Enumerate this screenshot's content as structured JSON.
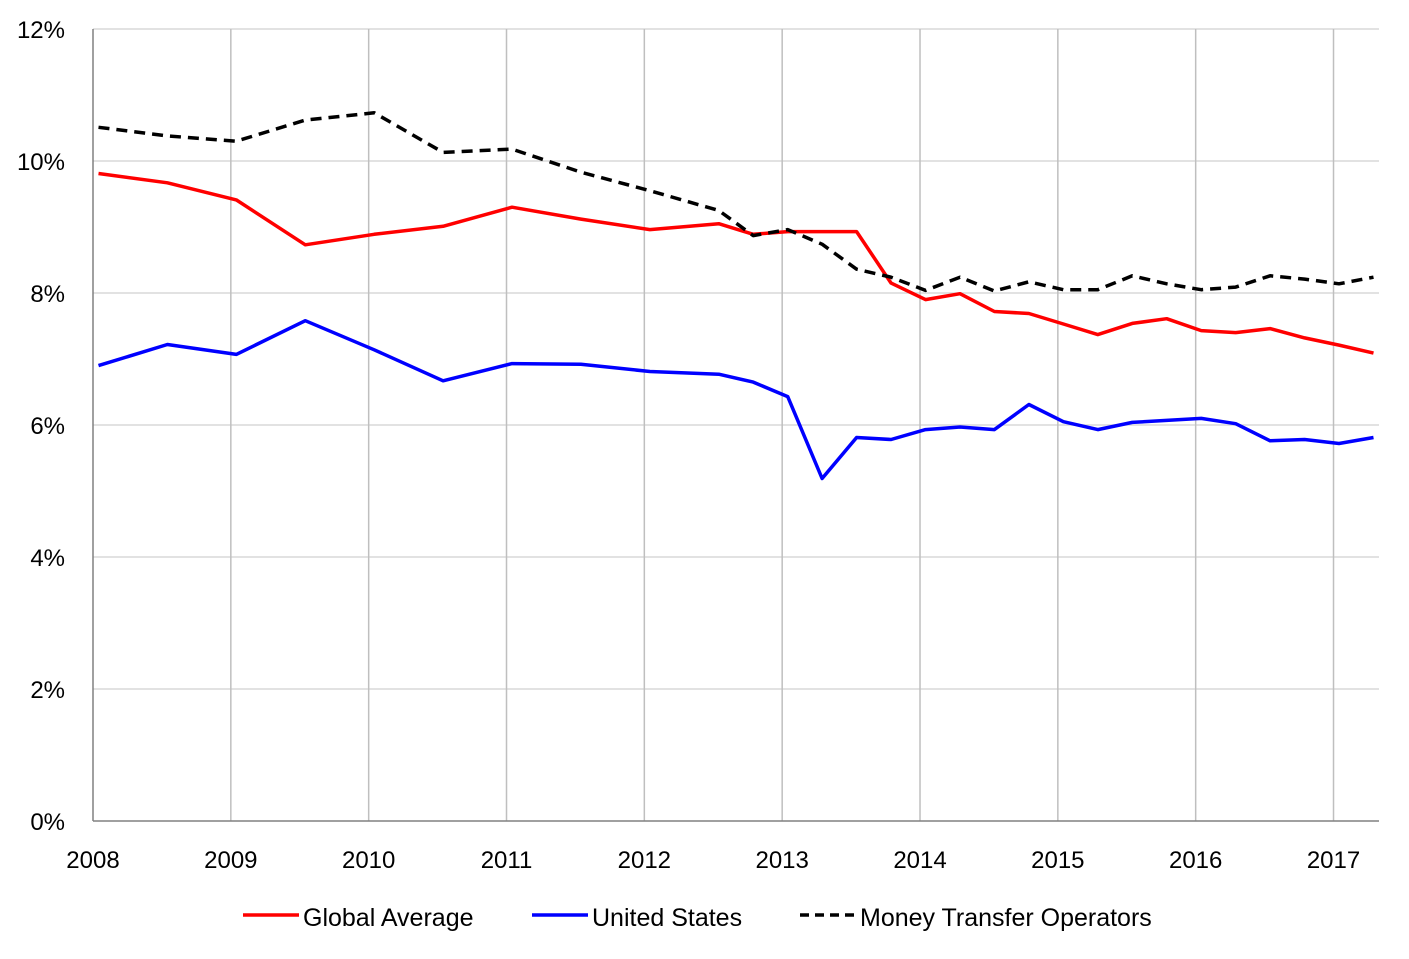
{
  "chart_data": {
    "type": "line",
    "title": "",
    "xlabel": "",
    "ylabel": "",
    "ylim": [
      0,
      12
    ],
    "xlim": [
      2008,
      2017.33
    ],
    "y_ticks": [
      {
        "value": 0,
        "label": "0%"
      },
      {
        "value": 2,
        "label": "2%"
      },
      {
        "value": 4,
        "label": "4%"
      },
      {
        "value": 6,
        "label": "6%"
      },
      {
        "value": 8,
        "label": "8%"
      },
      {
        "value": 10,
        "label": "10%"
      },
      {
        "value": 12,
        "label": "12%"
      }
    ],
    "x_ticks": [
      {
        "value": 2008,
        "label": "2008"
      },
      {
        "value": 2009,
        "label": "2009"
      },
      {
        "value": 2010,
        "label": "2010"
      },
      {
        "value": 2011,
        "label": "2011"
      },
      {
        "value": 2012,
        "label": "2012"
      },
      {
        "value": 2013,
        "label": "2013"
      },
      {
        "value": 2014,
        "label": "2014"
      },
      {
        "value": 2015,
        "label": "2015"
      },
      {
        "value": 2016,
        "label": "2016"
      },
      {
        "value": 2017,
        "label": "2017"
      }
    ],
    "grid": true,
    "legend_position": "bottom",
    "series": [
      {
        "name": "Global Average",
        "color": "#ff0000",
        "dash": "solid",
        "x": [
          2008.04,
          2008.54,
          2009.04,
          2009.54,
          2010.04,
          2010.54,
          2011.04,
          2011.54,
          2012.04,
          2012.54,
          2012.79,
          2013.04,
          2013.29,
          2013.54,
          2013.79,
          2014.04,
          2014.29,
          2014.54,
          2014.79,
          2015.04,
          2015.29,
          2015.54,
          2015.79,
          2016.04,
          2016.29,
          2016.54,
          2016.79,
          2017.04,
          2017.29
        ],
        "values": [
          9.81,
          9.67,
          9.41,
          8.73,
          8.89,
          9.01,
          9.3,
          9.12,
          8.96,
          9.05,
          8.89,
          8.93,
          8.93,
          8.93,
          8.15,
          7.9,
          7.99,
          7.72,
          7.69,
          7.53,
          7.37,
          7.54,
          7.61,
          7.43,
          7.4,
          7.46,
          7.32,
          7.21,
          7.09
        ]
      },
      {
        "name": "United States",
        "color": "#0000ff",
        "dash": "solid",
        "x": [
          2008.04,
          2008.54,
          2009.04,
          2009.54,
          2010.04,
          2010.54,
          2011.04,
          2011.54,
          2012.04,
          2012.54,
          2012.79,
          2013.04,
          2013.29,
          2013.54,
          2013.79,
          2014.04,
          2014.29,
          2014.54,
          2014.79,
          2015.04,
          2015.29,
          2015.54,
          2015.79,
          2016.04,
          2016.29,
          2016.54,
          2016.79,
          2017.04,
          2017.29
        ],
        "values": [
          6.9,
          7.22,
          7.07,
          7.58,
          7.14,
          6.67,
          6.93,
          6.92,
          6.81,
          6.77,
          6.65,
          6.43,
          5.19,
          5.81,
          5.78,
          5.93,
          5.97,
          5.93,
          6.31,
          6.05,
          5.93,
          6.04,
          6.07,
          6.1,
          6.02,
          5.76,
          5.78,
          5.72,
          5.81
        ]
      },
      {
        "name": "Money Transfer Operators",
        "color": "#000000",
        "dash": "dashed",
        "x": [
          2008.04,
          2008.54,
          2009.04,
          2009.54,
          2010.04,
          2010.54,
          2011.04,
          2011.54,
          2012.04,
          2012.54,
          2012.79,
          2013.04,
          2013.29,
          2013.54,
          2013.79,
          2014.04,
          2014.29,
          2014.54,
          2014.79,
          2015.04,
          2015.29,
          2015.54,
          2015.79,
          2016.04,
          2016.29,
          2016.54,
          2016.79,
          2017.04,
          2017.29
        ],
        "values": [
          10.51,
          10.38,
          10.3,
          10.62,
          10.73,
          10.13,
          10.18,
          9.83,
          9.55,
          9.25,
          8.87,
          8.96,
          8.74,
          8.36,
          8.24,
          8.04,
          8.24,
          8.03,
          8.17,
          8.05,
          8.05,
          8.26,
          8.14,
          8.05,
          8.09,
          8.26,
          8.21,
          8.14,
          8.24
        ]
      }
    ]
  }
}
